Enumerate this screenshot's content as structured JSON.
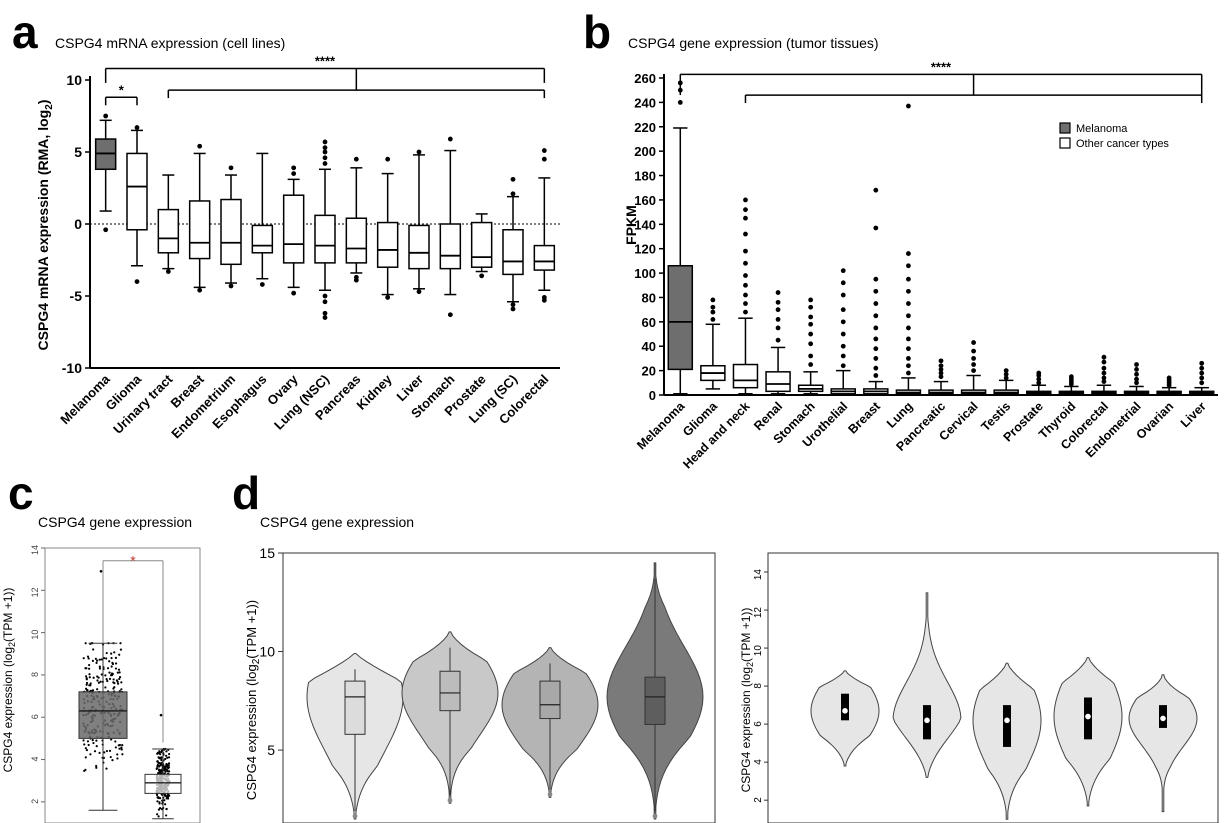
{
  "colors": {
    "melanoma": "#6e6e6e",
    "other": "#ffffff",
    "violin_light": "#e6e6e6",
    "violin_mid": "#c8c8c8",
    "violin_mid2": "#b4b4b4",
    "violin_dark": "#7a7a7a",
    "box_c": "#6a6a6a",
    "star_red": "#c0392b"
  },
  "chart_data": [
    {
      "panel_letter": "a",
      "type": "box",
      "title": "CSPG4 mRNA expression (cell lines)",
      "ylabel_main": "CSPG4 mRNA expression (RMA, log",
      "ylabel_sub": "2",
      "ylabel_end": ")",
      "ylim": [
        -10,
        10
      ],
      "yticks": [
        "-10",
        "-5",
        "0",
        "5",
        "10"
      ],
      "categories": [
        "Melanoma",
        "Glioma",
        "Urinary tract",
        "Breast",
        "Endometrium",
        "Esophagus",
        "Ovary",
        "Lung (NSC)",
        "Pancreas",
        "Kidney",
        "Liver",
        "Stomach",
        "Prostate",
        "Lung (SC)",
        "Colorectal"
      ],
      "boxes": [
        {
          "min": 0.9,
          "q1": 3.8,
          "median": 4.9,
          "q3": 5.9,
          "max": 7.2,
          "outliers": [
            -0.4,
            7.5
          ]
        },
        {
          "min": -2.9,
          "q1": -0.4,
          "median": 2.6,
          "q3": 4.9,
          "max": 6.5,
          "outliers": [
            -4.0,
            6.7
          ]
        },
        {
          "min": -3.1,
          "q1": -2.0,
          "median": -1.0,
          "q3": 1.0,
          "max": 3.4,
          "outliers": [
            -3.3
          ]
        },
        {
          "min": -4.4,
          "q1": -2.4,
          "median": -1.3,
          "q3": 1.6,
          "max": 4.9,
          "outliers": [
            -4.6,
            5.4
          ]
        },
        {
          "min": -4.1,
          "q1": -2.8,
          "median": -1.3,
          "q3": 1.7,
          "max": 3.4,
          "outliers": [
            -4.3,
            3.9
          ]
        },
        {
          "min": -3.8,
          "q1": -2.0,
          "median": -1.5,
          "q3": -0.1,
          "max": 4.9,
          "outliers": [
            -4.2
          ]
        },
        {
          "min": -4.4,
          "q1": -2.7,
          "median": -1.4,
          "q3": 2.0,
          "max": 3.1,
          "outliers": [
            -4.8,
            3.5,
            3.9
          ]
        },
        {
          "min": -4.6,
          "q1": -2.7,
          "median": -1.5,
          "q3": 0.6,
          "max": 3.8,
          "outliers": [
            -5.0,
            -5.4,
            -6.2,
            -6.5,
            4.2,
            4.6,
            5.0,
            5.3,
            5.7
          ]
        },
        {
          "min": -3.4,
          "q1": -2.7,
          "median": -1.7,
          "q3": 0.4,
          "max": 3.9,
          "outliers": [
            -3.7,
            -3.9,
            4.5
          ]
        },
        {
          "min": -4.9,
          "q1": -3.0,
          "median": -1.8,
          "q3": 0.1,
          "max": 3.5,
          "outliers": [
            -5.1,
            4.5
          ]
        },
        {
          "min": -4.5,
          "q1": -3.1,
          "median": -2.0,
          "q3": -0.1,
          "max": 4.8,
          "outliers": [
            -4.7,
            5.0
          ]
        },
        {
          "min": -4.9,
          "q1": -3.1,
          "median": -2.2,
          "q3": 0.0,
          "max": 5.1,
          "outliers": [
            -6.3,
            5.9
          ]
        },
        {
          "min": -3.3,
          "q1": -3.0,
          "median": -2.3,
          "q3": 0.1,
          "max": 0.7,
          "outliers": [
            -3.6
          ]
        },
        {
          "min": -5.4,
          "q1": -3.5,
          "median": -2.6,
          "q3": -0.4,
          "max": 1.9,
          "outliers": [
            -5.6,
            -5.9,
            2.1,
            3.1
          ]
        },
        {
          "min": -4.6,
          "q1": -3.2,
          "median": -2.6,
          "q3": -1.5,
          "max": 3.2,
          "outliers": [
            -5.1,
            -5.3,
            4.5,
            5.1
          ]
        }
      ],
      "annotations": [
        {
          "text": "*",
          "from": 0,
          "to": 1,
          "y": 8.8
        },
        {
          "text": "****",
          "from": 0,
          "to": 14,
          "y": 10.8,
          "drop_to": 9.8
        }
      ]
    },
    {
      "panel_letter": "b",
      "type": "box",
      "title": "CSPG4 gene expression (tumor tissues)",
      "ylabel": "FPKM",
      "ylim": [
        0,
        260
      ],
      "yticks": [
        "0",
        "20",
        "40",
        "60",
        "80",
        "100",
        "120",
        "140",
        "160",
        "180",
        "200",
        "220",
        "240",
        "260"
      ],
      "legend": [
        {
          "label": "Melanoma"
        },
        {
          "label": "Other cancer types"
        }
      ],
      "legend_position": "top-right",
      "categories": [
        "Melanoma",
        "Glioma",
        "Head and neck",
        "Renal",
        "Stomach",
        "Urothelial",
        "Breast",
        "Lung",
        "Pancreatic",
        "Cervical",
        "Testis",
        "Prostate",
        "Thyroid",
        "Colorectal",
        "Endometrial",
        "Ovarian",
        "Liver"
      ],
      "boxes": [
        {
          "min": 1,
          "q1": 21,
          "median": 60,
          "q3": 106,
          "max": 219,
          "outliers": [
            240,
            250,
            256
          ]
        },
        {
          "min": 5,
          "q1": 12,
          "median": 18,
          "q3": 24,
          "max": 58,
          "outliers": [
            62,
            68,
            72,
            78
          ]
        },
        {
          "min": 1,
          "q1": 6,
          "median": 12,
          "q3": 25,
          "max": 63,
          "outliers": [
            68,
            75,
            82,
            90,
            98,
            108,
            118,
            132,
            145,
            152,
            160
          ]
        },
        {
          "min": 1,
          "q1": 3,
          "median": 9,
          "q3": 19,
          "max": 39,
          "outliers": [
            45,
            55,
            62,
            70,
            76,
            84
          ]
        },
        {
          "min": 1,
          "q1": 3,
          "median": 5,
          "q3": 8,
          "max": 19,
          "outliers": [
            25,
            32,
            42,
            50,
            58,
            64,
            72,
            78
          ]
        },
        {
          "min": 0,
          "q1": 1,
          "median": 3,
          "q3": 5,
          "max": 20,
          "outliers": [
            24,
            32,
            40,
            50,
            60,
            70,
            82,
            92,
            102
          ]
        },
        {
          "min": 0,
          "q1": 1,
          "median": 3,
          "q3": 5,
          "max": 11,
          "outliers": [
            16,
            22,
            30,
            38,
            46,
            55,
            65,
            75,
            85,
            95,
            137,
            168
          ]
        },
        {
          "min": 0,
          "q1": 1,
          "median": 2,
          "q3": 4,
          "max": 14,
          "outliers": [
            18,
            24,
            30,
            38,
            46,
            55,
            65,
            75,
            85,
            95,
            106,
            116,
            237
          ]
        },
        {
          "min": 0,
          "q1": 1,
          "median": 2,
          "q3": 4,
          "max": 11,
          "outliers": [
            15,
            18,
            21,
            24,
            28
          ]
        },
        {
          "min": 0,
          "q1": 1,
          "median": 2,
          "q3": 4,
          "max": 16,
          "outliers": [
            20,
            25,
            30,
            36,
            43
          ]
        },
        {
          "min": 0,
          "q1": 1,
          "median": 2,
          "q3": 4,
          "max": 12,
          "outliers": [
            14,
            17,
            20
          ]
        },
        {
          "min": 0,
          "q1": 1,
          "median": 2,
          "q3": 3,
          "max": 8,
          "outliers": [
            10,
            13,
            16,
            18
          ]
        },
        {
          "min": 0,
          "q1": 1,
          "median": 2,
          "q3": 3,
          "max": 7,
          "outliers": [
            9,
            11,
            13,
            15
          ]
        },
        {
          "min": 0,
          "q1": 1,
          "median": 2,
          "q3": 3,
          "max": 8,
          "outliers": [
            11,
            14,
            18,
            22,
            27,
            31
          ]
        },
        {
          "min": 0,
          "q1": 1,
          "median": 2,
          "q3": 3,
          "max": 7,
          "outliers": [
            10,
            13,
            17,
            21,
            25
          ]
        },
        {
          "min": 0,
          "q1": 1,
          "median": 2,
          "q3": 3,
          "max": 6,
          "outliers": [
            8,
            10,
            12,
            14
          ]
        },
        {
          "min": 0,
          "q1": 1,
          "median": 2,
          "q3": 3,
          "max": 6,
          "outliers": [
            10,
            14,
            18,
            22,
            26
          ]
        }
      ],
      "annotations": [
        {
          "text": "****",
          "from": 0,
          "to": 16,
          "y": 263,
          "drop_to": 246
        }
      ]
    },
    {
      "panel_letter": "c",
      "type": "box",
      "title": "CSPG4 gene expression",
      "ylabel": "CSPG4 expression (log",
      "ylabel_sub": "2",
      "ylabel_end": "(TPM +1))",
      "ylim": [
        1,
        14
      ],
      "yticks": [
        "2",
        "4",
        "6",
        "8",
        "10",
        "12",
        "14"
      ],
      "boxes": [
        {
          "min": 1.6,
          "q1": 5.0,
          "median": 6.3,
          "q3": 7.2,
          "max": 9.5,
          "jitter_spread": 2.8,
          "outliers": [
            12.9
          ]
        },
        {
          "min": 1.2,
          "q1": 2.4,
          "median": 2.9,
          "q3": 3.3,
          "max": 4.5,
          "jitter_spread": 0.9,
          "outliers": [
            6.1
          ]
        }
      ],
      "annotations": [
        {
          "text": "*",
          "from": 0,
          "to": 1,
          "y": 13.4
        }
      ]
    },
    {
      "panel_letter": "d",
      "type": "violin",
      "title": "CSPG4 gene expression",
      "ylabel": "CSPG4 expression (log",
      "ylabel_sub": "2",
      "ylabel_end": "(TPM +1))",
      "ylim": [
        1.3,
        15
      ],
      "yticks": [
        "5",
        "10",
        "15"
      ],
      "violins": [
        {
          "min": 1.5,
          "max": 9.9,
          "q1": 5.8,
          "median": 7.7,
          "q3": 8.5,
          "width": 0.9
        },
        {
          "min": 2.3,
          "max": 11.0,
          "q1": 7.0,
          "median": 7.9,
          "q3": 9.0,
          "width": 0.9
        },
        {
          "min": 2.6,
          "max": 10.2,
          "q1": 6.6,
          "median": 7.3,
          "q3": 8.5,
          "width": 0.9
        },
        {
          "min": 1.5,
          "max": 14.5,
          "q1": 6.3,
          "median": 7.7,
          "q3": 8.7,
          "width": 0.95
        }
      ]
    },
    {
      "type": "violin",
      "ylabel": "CSPG4 expression (log",
      "ylabel_sub": "2",
      "ylabel_end": "(TPM +1))",
      "ylim": [
        0.8,
        15
      ],
      "yticks": [
        "2",
        "4",
        "6",
        "8",
        "10",
        "12",
        "14"
      ],
      "violins": [
        {
          "min": 3.8,
          "max": 8.8,
          "q1": 6.2,
          "median": 6.7,
          "q3": 7.6
        },
        {
          "min": 3.2,
          "max": 12.9,
          "q1": 5.2,
          "median": 6.2,
          "q3": 7.0
        },
        {
          "min": 1.0,
          "max": 9.2,
          "q1": 4.8,
          "median": 6.2,
          "q3": 7.0
        },
        {
          "min": 1.7,
          "max": 9.5,
          "q1": 5.2,
          "median": 6.4,
          "q3": 7.4
        },
        {
          "min": 1.4,
          "max": 8.6,
          "q1": 5.8,
          "median": 6.3,
          "q3": 7.0
        }
      ]
    }
  ]
}
